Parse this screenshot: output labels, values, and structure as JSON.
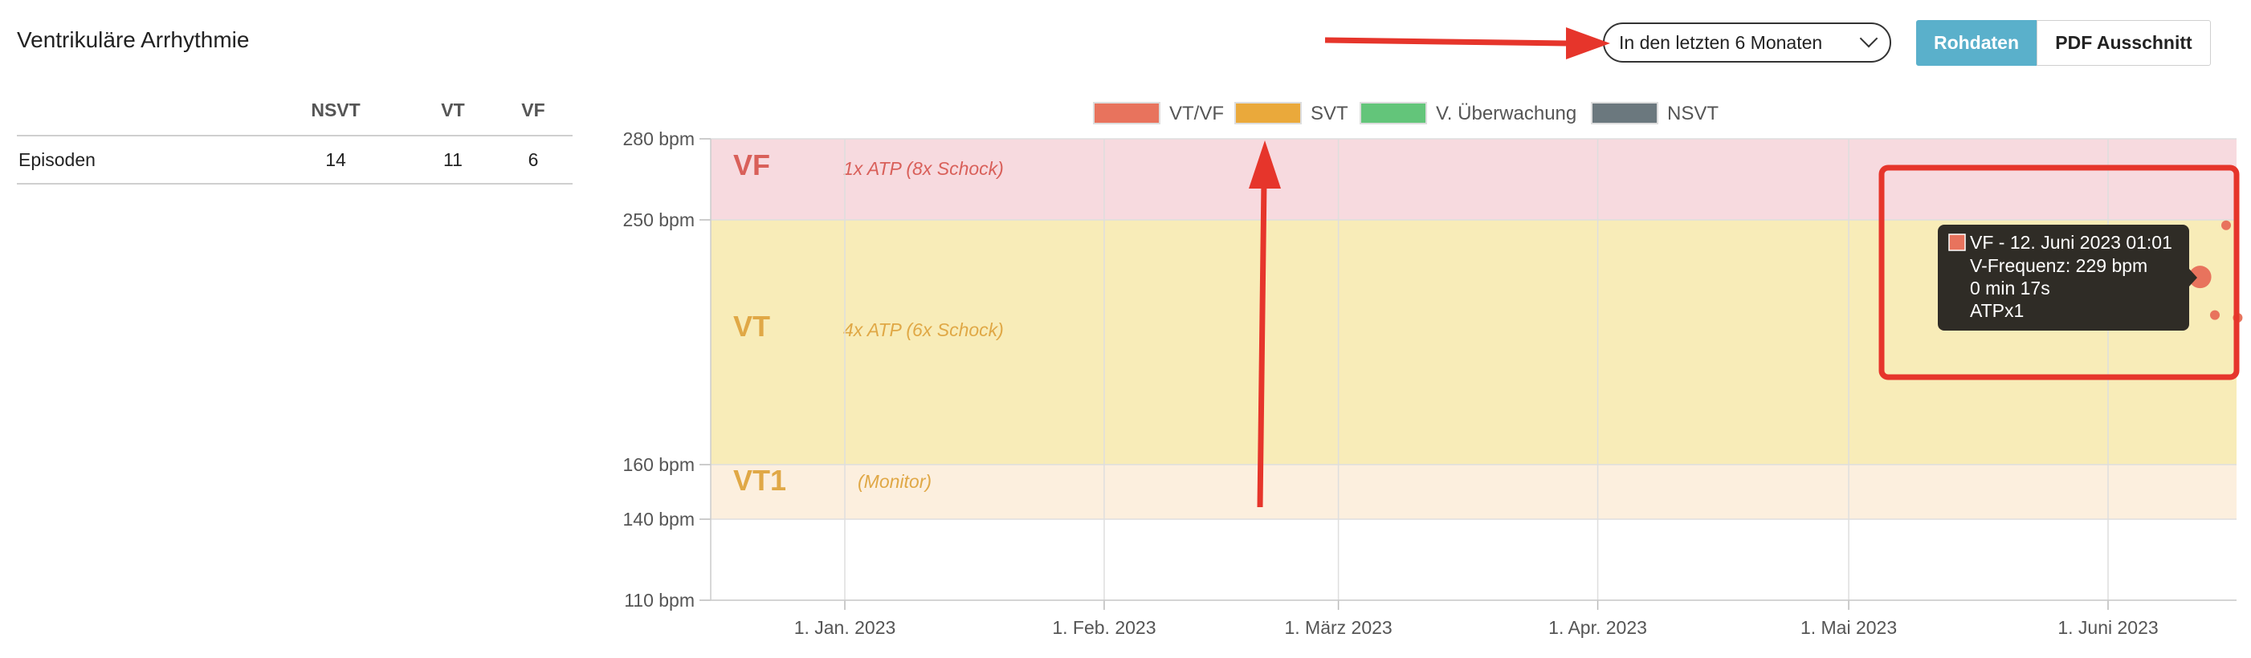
{
  "title": "Ventrikuläre Arrhythmie",
  "stats": {
    "headers": [
      "NSVT",
      "VT",
      "VF"
    ],
    "rows": [
      {
        "label": "Episoden",
        "values": [
          "14",
          "11",
          "6"
        ]
      }
    ]
  },
  "range_select": {
    "value": "In den letzten 6 Monaten"
  },
  "buttons": {
    "raw": "Rohdaten",
    "pdf": "PDF Ausschnitt"
  },
  "chart_data": {
    "type": "scatter",
    "legend": [
      {
        "name": "VT/VF",
        "color": "#e8735d"
      },
      {
        "name": "SVT",
        "color": "#eaa93b"
      },
      {
        "name": "V. Überwachung",
        "color": "#63c57a"
      },
      {
        "name": "NSVT",
        "color": "#6b787e"
      }
    ],
    "legend_position": "top",
    "y_ticks": [
      {
        "value": 280,
        "label": "280 bpm"
      },
      {
        "value": 250,
        "label": "250 bpm"
      },
      {
        "value": 160,
        "label": "160 bpm"
      },
      {
        "value": 140,
        "label": "140 bpm"
      },
      {
        "value": 110,
        "label": "110 bpm"
      }
    ],
    "ylim": [
      110,
      280
    ],
    "x_ticks": [
      {
        "date": "2023-01-01",
        "label": "1. Jan. 2023"
      },
      {
        "date": "2023-02-01",
        "label": "1. Feb. 2023"
      },
      {
        "date": "2023-03-01",
        "label": "1. März 2023"
      },
      {
        "date": "2023-04-01",
        "label": "1. Apr. 2023"
      },
      {
        "date": "2023-05-01",
        "label": "1. Mai 2023"
      },
      {
        "date": "2023-06-01",
        "label": "1. Juni 2023"
      }
    ],
    "xlim": [
      "2022-12-15",
      "2023-06-15"
    ],
    "zones": [
      {
        "name": "VF",
        "from": 250,
        "to": 280,
        "color": "#f7dadf",
        "label_color": "#d9605a",
        "therapy": "1x ATP (8x Schock)"
      },
      {
        "name": "VT",
        "from": 160,
        "to": 250,
        "color": "#f8ecb8",
        "label_color": "#e0a846",
        "therapy": "4x ATP (6x Schock)"
      },
      {
        "name": "VT1",
        "from": 140,
        "to": 160,
        "color": "#fcefde",
        "label_color": "#e0a846",
        "therapy": "(Monitor)"
      }
    ],
    "points": [
      {
        "date": "2023-06-12",
        "bpm": 229,
        "series": "VT/VF",
        "highlight": true
      },
      {
        "date": "2023-06-13",
        "bpm": 248,
        "series": "VT/VF"
      },
      {
        "date": "2023-06-13",
        "bpm": 215,
        "series": "VT/VF"
      },
      {
        "date": "2023-06-14",
        "bpm": 214,
        "series": "VT/VF"
      }
    ],
    "tooltip": {
      "title": "VF - 12. Juni 2023 01:01",
      "lines": [
        "V-Frequenz: 229 bpm",
        "0 min 17s",
        "ATPx1"
      ],
      "color": "#e8735d"
    }
  },
  "colors": {
    "annotation_red": "#e6352b",
    "grid": "#dedede",
    "tooltip_bg": "#2f2c26"
  }
}
